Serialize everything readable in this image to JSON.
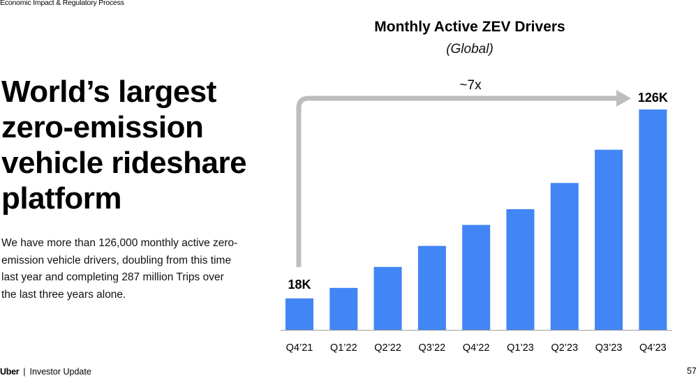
{
  "header": {
    "section": "Economic Impact & Regulatory Process"
  },
  "headline": "World’s largest zero-emission vehicle rideshare platform",
  "body": "We have more than 126,000 monthly active zero-emission vehicle drivers, doubling from this time last year and completing 287 million Trips over the last three years alone.",
  "footer": {
    "brand": "Uber",
    "separator": "|",
    "label": "Investor Update",
    "page": "57"
  },
  "colors": {
    "bar": "#4285f4",
    "arrow": "#bdbdbd",
    "axis": "#9e9e9e"
  },
  "chart_data": {
    "type": "bar",
    "title": "Monthly Active ZEV Drivers",
    "subtitle": "(Global)",
    "categories": [
      "Q4’21",
      "Q1’22",
      "Q2’22",
      "Q3’22",
      "Q4’22",
      "Q1’23",
      "Q2’23",
      "Q3’23",
      "Q4’23"
    ],
    "values": [
      18,
      24,
      36,
      48,
      60,
      69,
      84,
      103,
      126
    ],
    "unit": "K",
    "ylim": [
      0,
      126
    ],
    "data_labels": [
      {
        "index": 0,
        "text": "18K"
      },
      {
        "index": 8,
        "text": "126K"
      }
    ],
    "annotation": {
      "text": "~7x",
      "from_index": 0,
      "to_index": 8
    },
    "xlabel": "",
    "ylabel": "",
    "grid": false
  }
}
